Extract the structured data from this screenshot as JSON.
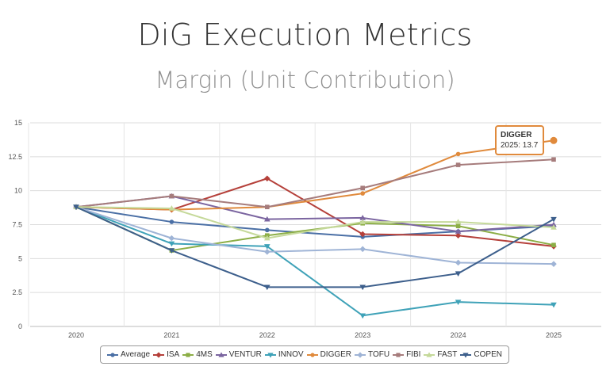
{
  "header": {
    "title": "DiG Execution Metrics",
    "subtitle": "Margin (Unit Contribution)"
  },
  "tooltip": {
    "series": "DIGGER",
    "text": "2025: 13.7"
  },
  "chart_data": {
    "type": "line",
    "title": "DiG Execution Metrics",
    "subtitle": "Margin (Unit Contribution)",
    "xlabel": "",
    "ylabel": "",
    "x": [
      "2020",
      "2021",
      "2022",
      "2023",
      "2024",
      "2025"
    ],
    "ylim": [
      0,
      15
    ],
    "yticks": [
      "0",
      "2.5",
      "5",
      "7.5",
      "10",
      "12.5",
      "15"
    ],
    "grid": true,
    "legend": "bottom",
    "series": [
      {
        "name": "Average",
        "color": "#4a6fa5",
        "marker": "circle",
        "values": [
          8.8,
          7.7,
          7.1,
          6.6,
          7.0,
          7.4
        ]
      },
      {
        "name": "ISA",
        "color": "#b5403a",
        "marker": "diamond",
        "values": [
          8.8,
          8.6,
          10.9,
          6.8,
          6.7,
          5.9
        ]
      },
      {
        "name": "4MS",
        "color": "#8cae46",
        "marker": "square",
        "values": [
          8.8,
          5.6,
          6.7,
          7.6,
          7.4,
          6.0
        ]
      },
      {
        "name": "VENTUR",
        "color": "#7b65a0",
        "marker": "triangle",
        "values": [
          8.8,
          9.6,
          7.9,
          8.0,
          7.0,
          7.5
        ]
      },
      {
        "name": "INNOV",
        "color": "#3fa2b8",
        "marker": "triangle-down",
        "values": [
          8.8,
          6.1,
          5.9,
          0.8,
          1.8,
          1.6
        ]
      },
      {
        "name": "DIGGER",
        "color": "#e08a3c",
        "marker": "circle",
        "values": [
          8.8,
          8.6,
          8.8,
          9.8,
          12.7,
          13.7
        ]
      },
      {
        "name": "TOFU",
        "color": "#9fb4d6",
        "marker": "diamond",
        "values": [
          8.8,
          6.5,
          5.5,
          5.7,
          4.7,
          4.6
        ]
      },
      {
        "name": "FIBI",
        "color": "#a67c7c",
        "marker": "square",
        "values": [
          8.8,
          9.6,
          8.8,
          10.2,
          11.9,
          12.3
        ]
      },
      {
        "name": "FAST",
        "color": "#c5d99a",
        "marker": "triangle",
        "values": [
          8.8,
          8.7,
          6.5,
          7.7,
          7.7,
          7.3
        ]
      },
      {
        "name": "COPEN",
        "color": "#3d5f8c",
        "marker": "triangle-down",
        "values": [
          8.8,
          5.6,
          2.9,
          2.9,
          3.9,
          7.9
        ]
      }
    ]
  }
}
